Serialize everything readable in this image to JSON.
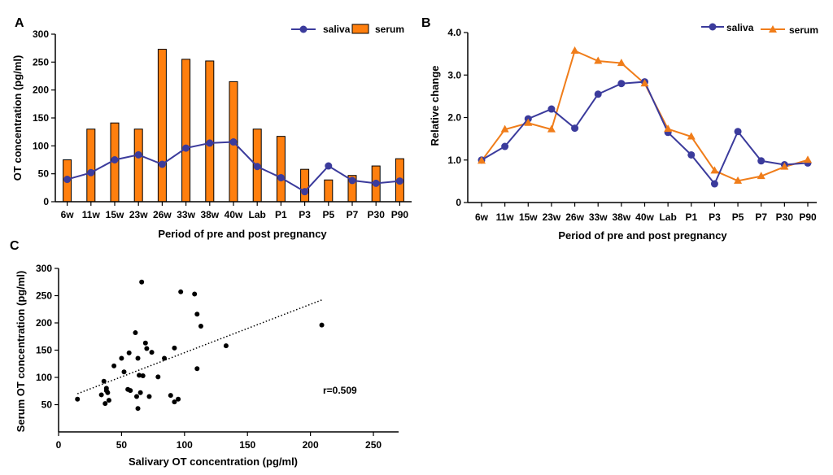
{
  "colors": {
    "saliva": "#3b3b9c",
    "serum_bar": "#ff7f0e",
    "serum_line": "#f07d1a"
  },
  "chart_data": [
    {
      "panel": "A",
      "type": "bar",
      "categories": [
        "6w",
        "11w",
        "15w",
        "23w",
        "26w",
        "33w",
        "38w",
        "40w",
        "Lab",
        "P1",
        "P3",
        "P5",
        "P7",
        "P30",
        "P90"
      ],
      "series": [
        {
          "name": "serum",
          "kind": "bar",
          "values": [
            75,
            130,
            141,
            130,
            273,
            255,
            252,
            215,
            130,
            117,
            58,
            39,
            47,
            64,
            77
          ]
        },
        {
          "name": "saliva",
          "kind": "line",
          "values": [
            40,
            52,
            75,
            84,
            67,
            96,
            105,
            107,
            63,
            43,
            18,
            64,
            38,
            33,
            37
          ]
        }
      ],
      "xlabel": "Period of pre and post pregnancy",
      "ylabel": "OT concentration (pg/ml)",
      "ylim": [
        0,
        300
      ],
      "yticks": [
        "0",
        "50",
        "100",
        "150",
        "200",
        "250",
        "300"
      ],
      "legend": {
        "placement": "top-right",
        "saliva": "saliva",
        "serum": "serum"
      }
    },
    {
      "panel": "B",
      "type": "line",
      "categories": [
        "6w",
        "11w",
        "15w",
        "23w",
        "26w",
        "33w",
        "38w",
        "40w",
        "Lab",
        "P1",
        "P3",
        "P5",
        "P7",
        "P30",
        "P90"
      ],
      "series": [
        {
          "name": "saliva",
          "values": [
            1.0,
            1.32,
            1.97,
            2.2,
            1.75,
            2.55,
            2.8,
            2.84,
            1.65,
            1.12,
            0.44,
            1.67,
            0.98,
            0.89,
            0.93
          ]
        },
        {
          "name": "serum",
          "values": [
            0.98,
            1.72,
            1.87,
            1.72,
            3.57,
            3.33,
            3.28,
            2.8,
            1.73,
            1.55,
            0.75,
            0.51,
            0.62,
            0.84,
            1.0
          ]
        }
      ],
      "xlabel": "Period of pre and post pregnancy",
      "ylabel": "Relative change",
      "ylim": [
        0,
        4
      ],
      "yticks": [
        "0",
        "1.0",
        "2.0",
        "3.0",
        "4.0"
      ],
      "legend": {
        "placement": "top-right",
        "saliva": "saliva",
        "serum": "serum"
      }
    },
    {
      "panel": "C",
      "type": "scatter",
      "xlabel": "Salivary OT concentration (pg/ml)",
      "ylabel": "Serum OT concentration (pg/ml)",
      "xlim": [
        0,
        270
      ],
      "ylim": [
        0,
        300
      ],
      "xticks": [
        "0",
        "50",
        "100",
        "150",
        "200",
        "250"
      ],
      "yticks": [
        "50",
        "100",
        "150",
        "200",
        "250",
        "300"
      ],
      "annotation": "r=0.509",
      "trendline": {
        "x": [
          15,
          210
        ],
        "y": [
          70,
          243
        ]
      },
      "points": [
        [
          15,
          60
        ],
        [
          34,
          68
        ],
        [
          36,
          93
        ],
        [
          37,
          52
        ],
        [
          38,
          80
        ],
        [
          38,
          76
        ],
        [
          39,
          72
        ],
        [
          40,
          58
        ],
        [
          44,
          121
        ],
        [
          50,
          135
        ],
        [
          52,
          110
        ],
        [
          55,
          78
        ],
        [
          56,
          145
        ],
        [
          57,
          76
        ],
        [
          61,
          182
        ],
        [
          62,
          65
        ],
        [
          63,
          43
        ],
        [
          63,
          135
        ],
        [
          64,
          104
        ],
        [
          65,
          72
        ],
        [
          66,
          275
        ],
        [
          67,
          103
        ],
        [
          69,
          163
        ],
        [
          70,
          153
        ],
        [
          72,
          65
        ],
        [
          74,
          146
        ],
        [
          79,
          101
        ],
        [
          84,
          135
        ],
        [
          89,
          67
        ],
        [
          92,
          55
        ],
        [
          92,
          154
        ],
        [
          95,
          60
        ],
        [
          97,
          257
        ],
        [
          108,
          253
        ],
        [
          110,
          216
        ],
        [
          110,
          116
        ],
        [
          113,
          194
        ],
        [
          133,
          158
        ],
        [
          209,
          196
        ]
      ]
    }
  ]
}
